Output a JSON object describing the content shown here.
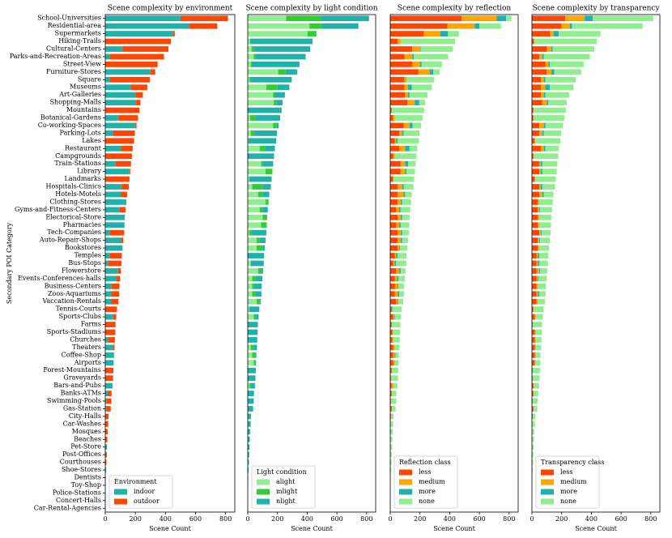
{
  "chart_data": [
    {
      "type": "bar",
      "orientation": "horizontal",
      "stacked": true,
      "title": "Scene complexity by environment",
      "xlabel": "Scene Count",
      "ylabel": "Secondary POI Category",
      "legend_title": "Environment",
      "legend": "lower left",
      "xlim": [
        0,
        861
      ],
      "xticks": [
        0,
        200,
        400,
        600,
        800
      ],
      "categories": [
        "School-Universities",
        "Residential-area",
        "Supermarkets",
        "Hiking-Trails",
        "Cultural-Centers",
        "Parks-and-Recreation-Areas",
        "Street-View",
        "Furniture-Stores",
        "Square",
        "Museums",
        "Art-Galleries",
        "Shopping-Malls",
        "Mountains",
        "Botanical-Gardens",
        "Co-working-Spaces",
        "Parking-Lots",
        "Lakes",
        "Restaurant",
        "Campgrounds",
        "Train-Stations",
        "Library",
        "Landmarks",
        "Hospitals-Clinics",
        "Hotels-Motels",
        "Clothing-Stores",
        "Gyms-and-Fitness-Centers",
        "Electorical-Store",
        "Pharmacies",
        "Tech-Companies",
        "Auto-Repair-Shops",
        "Bookstores",
        "Temples",
        "Bus-Stops",
        "Flowerstore",
        "Events-Conferences-halls",
        "Business-Centers",
        "Zoos-Aquariums",
        "Vaccation-Rentals",
        "Tennis-Courts",
        "Sports-Clubs",
        "Farms",
        "Sports-Stadiums",
        "Churches",
        "Theaters",
        "Coffee-Shop",
        "Airports",
        "Forest-Mountains",
        "Graveyards",
        "Bars-and-Pubs",
        "Banks-ATMs",
        "Swimming-Pools",
        "Gas-Station",
        "City-Halls",
        "Car-Washes",
        "Mosques",
        "Beaches",
        "Pet-Store",
        "Post-Offices",
        "Courthouses",
        "Shoe-Stores",
        "Dentists",
        "Toy-Shop",
        "Police-Stations",
        "Concert-Halls",
        "Car-Rental-Agencies"
      ],
      "series": [
        {
          "name": "indoor",
          "color": "#20b2aa",
          "values": [
            500,
            560,
            450,
            0,
            115,
            30,
            0,
            300,
            30,
            170,
            200,
            205,
            0,
            88,
            198,
            50,
            0,
            105,
            0,
            68,
            160,
            0,
            110,
            105,
            140,
            95,
            130,
            128,
            30,
            105,
            115,
            30,
            20,
            85,
            75,
            42,
            40,
            38,
            0,
            50,
            0,
            0,
            22,
            50,
            58,
            56,
            0,
            0,
            48,
            16,
            10,
            10,
            0,
            0,
            0,
            0,
            12,
            0,
            0,
            6,
            3,
            2,
            2,
            1,
            1
          ]
        },
        {
          "name": "outdoor",
          "color": "#ff4500",
          "values": [
            316,
            185,
            12,
            436,
            305,
            360,
            348,
            32,
            266,
            110,
            50,
            29,
            228,
            130,
            10,
            147,
            192,
            77,
            177,
            103,
            6,
            161,
            46,
            40,
            0,
            40,
            0,
            0,
            95,
            15,
            0,
            80,
            88,
            18,
            24,
            52,
            52,
            50,
            78,
            23,
            68,
            67,
            42,
            12,
            0,
            0,
            54,
            52,
            0,
            26,
            30,
            26,
            22,
            20,
            16,
            14,
            0,
            10,
            8,
            0,
            0,
            0,
            0,
            0,
            0
          ]
        }
      ]
    },
    {
      "type": "bar",
      "orientation": "horizontal",
      "stacked": true,
      "title": "Scene complexity by light condition",
      "xlabel": "Scene Count",
      "legend_title": "Light condition",
      "legend": "lower left",
      "xlim": [
        0,
        861
      ],
      "xticks": [
        0,
        200,
        400,
        600,
        800
      ],
      "series": [
        {
          "name": "alight",
          "color": "#90ee90",
          "values": [
            258,
            415,
            402,
            15,
            25,
            40,
            20,
            205,
            10,
            125,
            170,
            175,
            0,
            15,
            170,
            20,
            5,
            80,
            0,
            90,
            120,
            10,
            30,
            70,
            120,
            80,
            100,
            90,
            10,
            60,
            60,
            0,
            20,
            70,
            30,
            30,
            30,
            60,
            10,
            40,
            0,
            0,
            0,
            20,
            30,
            40,
            0,
            0,
            10,
            0,
            0,
            0,
            0,
            0,
            0,
            0,
            0,
            0,
            0,
            0,
            0,
            0,
            0,
            0,
            0
          ]
        },
        {
          "name": "mlight",
          "color": "#32cd32",
          "values": [
            235,
            80,
            60,
            0,
            15,
            10,
            10,
            50,
            10,
            75,
            10,
            20,
            0,
            35,
            25,
            20,
            0,
            40,
            0,
            10,
            46,
            0,
            70,
            30,
            20,
            20,
            30,
            38,
            15,
            20,
            40,
            0,
            0,
            20,
            20,
            10,
            20,
            20,
            0,
            15,
            0,
            0,
            0,
            20,
            20,
            10,
            0,
            0,
            10,
            0,
            0,
            0,
            0,
            0,
            0,
            0,
            0,
            0,
            0,
            0,
            0,
            0,
            0,
            0,
            0
          ]
        },
        {
          "name": "nlight",
          "color": "#20b2aa",
          "values": [
            323,
            250,
            0,
            421,
            380,
            340,
            318,
            77,
            276,
            80,
            70,
            39,
            228,
            168,
            13,
            157,
            187,
            62,
            177,
            71,
            0,
            151,
            56,
            45,
            0,
            35,
            0,
            0,
            100,
            40,
            15,
            110,
            88,
            13,
            49,
            54,
            42,
            8,
            68,
            18,
            68,
            67,
            64,
            22,
            8,
            6,
            54,
            52,
            28,
            42,
            40,
            36,
            22,
            20,
            16,
            14,
            12,
            10,
            8,
            6,
            3,
            2,
            2,
            1,
            1
          ]
        }
      ]
    },
    {
      "type": "bar",
      "orientation": "horizontal",
      "stacked": true,
      "title": "Scene complexity by reflection",
      "xlabel": "Scene Count",
      "legend_title": "Reflection class",
      "legend": "lower left",
      "xlim": [
        0,
        861
      ],
      "xticks": [
        0,
        200,
        400,
        600,
        800
      ],
      "series": [
        {
          "name": "less",
          "color": "#ff4500",
          "values": [
            480,
            384,
            226,
            50,
            147,
            95,
            147,
            190,
            95,
            95,
            100,
            115,
            10,
            20,
            90,
            60,
            30,
            60,
            20,
            70,
            70,
            20,
            50,
            50,
            50,
            40,
            50,
            40,
            50,
            50,
            50,
            30,
            20,
            40,
            30,
            30,
            30,
            40,
            10,
            20,
            10,
            15,
            15,
            20,
            20,
            20,
            10,
            5,
            10,
            10,
            5,
            10,
            5,
            0,
            0,
            0,
            0,
            0,
            0,
            0,
            0,
            0,
            0,
            0,
            0
          ]
        },
        {
          "name": "medium",
          "color": "#ffa500",
          "values": [
            235,
            184,
            110,
            20,
            53,
            53,
            53,
            75,
            10,
            25,
            20,
            50,
            0,
            10,
            40,
            20,
            10,
            40,
            10,
            30,
            30,
            0,
            30,
            40,
            20,
            20,
            20,
            20,
            20,
            20,
            10,
            10,
            10,
            20,
            15,
            20,
            20,
            10,
            0,
            5,
            0,
            5,
            5,
            10,
            10,
            10,
            0,
            0,
            10,
            0,
            0,
            0,
            0,
            0,
            0,
            0,
            0,
            0,
            0,
            0,
            0,
            0,
            0,
            0,
            0
          ]
        },
        {
          "name": "more",
          "color": "#20b2aa",
          "values": [
            65,
            32,
            53,
            0,
            5,
            10,
            10,
            25,
            5,
            25,
            10,
            30,
            0,
            0,
            20,
            10,
            10,
            30,
            0,
            20,
            10,
            0,
            10,
            10,
            10,
            10,
            10,
            10,
            10,
            10,
            5,
            10,
            10,
            10,
            10,
            5,
            10,
            5,
            5,
            5,
            0,
            0,
            0,
            0,
            5,
            0,
            0,
            0,
            0,
            0,
            0,
            0,
            0,
            0,
            0,
            0,
            0,
            0,
            0,
            0,
            0,
            0,
            0,
            0,
            0
          ]
        },
        {
          "name": "none",
          "color": "#90ee90",
          "values": [
            36,
            145,
            73,
            366,
            215,
            232,
            138,
            42,
            186,
            135,
            120,
            39,
            218,
            188,
            58,
            107,
            142,
            52,
            147,
            51,
            56,
            141,
            66,
            45,
            60,
            65,
            50,
            58,
            45,
            40,
            50,
            60,
            68,
            33,
            44,
            39,
            32,
            33,
            63,
            43,
            58,
            47,
            44,
            32,
            23,
            26,
            44,
            47,
            28,
            32,
            35,
            26,
            17,
            20,
            16,
            14,
            12,
            10,
            8,
            6,
            3,
            2,
            2,
            1,
            1
          ]
        }
      ]
    },
    {
      "type": "bar",
      "orientation": "horizontal",
      "stacked": true,
      "title": "Scene complexity by transparency",
      "xlabel": "Scene Count",
      "legend_title": "Transparency class",
      "legend": "lower left",
      "xlim": [
        0,
        861
      ],
      "xticks": [
        0,
        200,
        400,
        600,
        800
      ],
      "series": [
        {
          "name": "less",
          "color": "#ff4500",
          "values": [
            225,
            200,
            120,
            15,
            100,
            50,
            90,
            100,
            60,
            60,
            60,
            70,
            10,
            10,
            50,
            50,
            20,
            60,
            10,
            50,
            50,
            20,
            50,
            50,
            40,
            40,
            40,
            40,
            50,
            40,
            40,
            30,
            30,
            30,
            30,
            30,
            30,
            30,
            10,
            20,
            5,
            20,
            20,
            20,
            20,
            20,
            5,
            5,
            10,
            10,
            5,
            10,
            5,
            0,
            0,
            0,
            0,
            0,
            0,
            0,
            0,
            0,
            0,
            0,
            0
          ]
        },
        {
          "name": "medium",
          "color": "#ffa500",
          "values": [
            130,
            55,
            25,
            0,
            30,
            20,
            20,
            30,
            20,
            30,
            20,
            30,
            0,
            0,
            30,
            20,
            0,
            20,
            0,
            10,
            10,
            0,
            10,
            20,
            10,
            10,
            10,
            10,
            10,
            10,
            10,
            10,
            10,
            20,
            10,
            10,
            10,
            10,
            0,
            5,
            0,
            5,
            5,
            5,
            5,
            0,
            0,
            0,
            5,
            0,
            0,
            0,
            0,
            0,
            0,
            0,
            0,
            0,
            0,
            0,
            0,
            0,
            0,
            0,
            0
          ]
        },
        {
          "name": "more",
          "color": "#20b2aa",
          "values": [
            55,
            15,
            35,
            0,
            10,
            10,
            10,
            20,
            10,
            30,
            10,
            10,
            0,
            0,
            10,
            10,
            0,
            10,
            0,
            10,
            10,
            0,
            10,
            10,
            0,
            5,
            0,
            0,
            5,
            5,
            0,
            10,
            10,
            5,
            5,
            0,
            10,
            0,
            0,
            0,
            0,
            0,
            0,
            0,
            0,
            0,
            0,
            0,
            0,
            0,
            0,
            0,
            0,
            0,
            0,
            0,
            0,
            0,
            0,
            0,
            0,
            0,
            0,
            0,
            0
          ]
        },
        {
          "name": "none",
          "color": "#90ee90",
          "values": [
            406,
            475,
            282,
            421,
            280,
            310,
            228,
            182,
            206,
            160,
            160,
            124,
            218,
            208,
            118,
            117,
            172,
            92,
            167,
            101,
            96,
            141,
            86,
            65,
            90,
            80,
            80,
            78,
            60,
            65,
            65,
            60,
            58,
            48,
            54,
            54,
            42,
            48,
            68,
            48,
            63,
            42,
            39,
            37,
            33,
            36,
            49,
            47,
            33,
            32,
            35,
            26,
            17,
            20,
            16,
            14,
            12,
            10,
            8,
            6,
            3,
            2,
            2,
            1,
            1
          ]
        }
      ]
    }
  ]
}
